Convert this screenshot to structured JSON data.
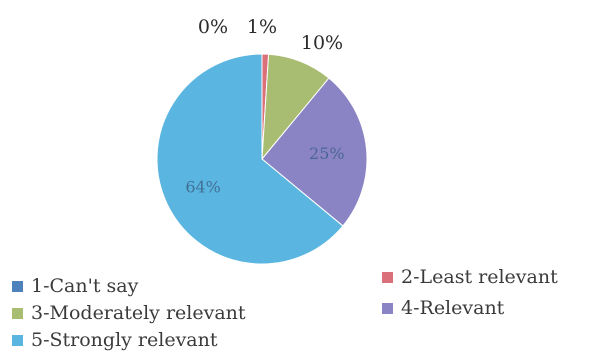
{
  "chart_data": {
    "type": "pie",
    "title": "",
    "categories": [
      "1-Can't say",
      "2-Least relevant",
      "3-Moderately relevant",
      "4-Relevant",
      "5-Strongly relevant"
    ],
    "values": [
      0,
      1,
      10,
      25,
      64
    ],
    "data_labels": [
      "0%",
      "1%",
      "10%",
      "25%",
      "64%"
    ],
    "legend_position": "bottom",
    "colors": [
      "#4f81bd",
      "#d9707a",
      "#a8bd72",
      "#8b84c4",
      "#5ab6e0"
    ]
  }
}
